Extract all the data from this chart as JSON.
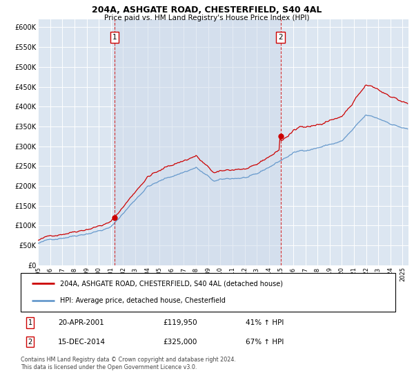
{
  "title1": "204A, ASHGATE ROAD, CHESTERFIELD, S40 4AL",
  "title2": "Price paid vs. HM Land Registry's House Price Index (HPI)",
  "legend_line1": "204A, ASHGATE ROAD, CHESTERFIELD, S40 4AL (detached house)",
  "legend_line2": "HPI: Average price, detached house, Chesterfield",
  "annotation1": {
    "label": "1",
    "date": "20-APR-2001",
    "price": "£119,950",
    "pct": "41% ↑ HPI",
    "x_year": 2001.29,
    "y_val": 119950
  },
  "annotation2": {
    "label": "2",
    "date": "15-DEC-2014",
    "price": "£325,000",
    "pct": "67% ↑ HPI",
    "x_year": 2014.96,
    "y_val": 325000
  },
  "footer": "Contains HM Land Registry data © Crown copyright and database right 2024.\nThis data is licensed under the Open Government Licence v3.0.",
  "table_rows": [
    {
      "num": "1",
      "date": "20-APR-2001",
      "price": "£119,950",
      "pct": "41% ↑ HPI"
    },
    {
      "num": "2",
      "date": "15-DEC-2014",
      "price": "£325,000",
      "pct": "67% ↑ HPI"
    }
  ],
  "red_color": "#cc0000",
  "blue_color": "#6699cc",
  "shade_color": "#dce6f1",
  "bg_color": "#dce6f1",
  "grid_color": "#ffffff",
  "ylim": [
    0,
    620000
  ],
  "xlim": [
    1995.0,
    2025.5
  ],
  "yticks": [
    0,
    50000,
    100000,
    150000,
    200000,
    250000,
    300000,
    350000,
    400000,
    450000,
    500000,
    550000,
    600000
  ]
}
